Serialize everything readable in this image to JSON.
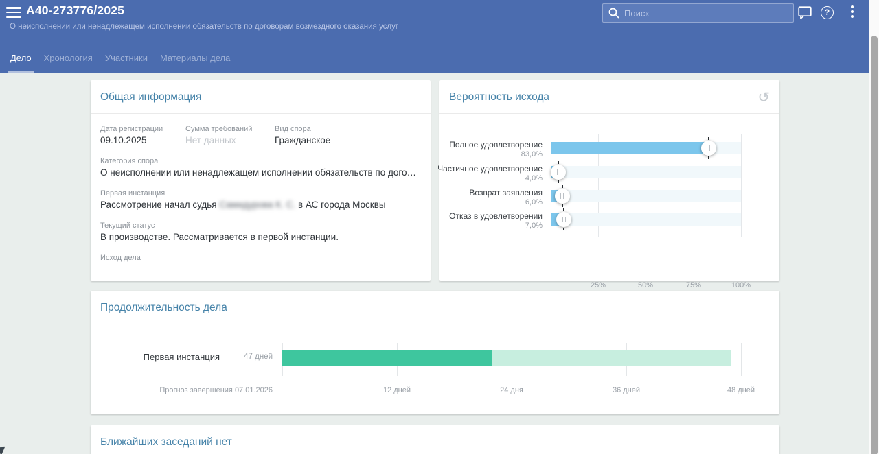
{
  "header": {
    "case_number": "А40-273776/2025",
    "case_subtitle": "О неисполнении или ненадлежащем исполнении обязательств по договорам возмездного оказания услуг",
    "search_placeholder": "Поиск"
  },
  "icons": {
    "refresh": "↺",
    "help": "?"
  },
  "tabs": [
    {
      "label": "Дело",
      "active": true
    },
    {
      "label": "Хронология",
      "active": false
    },
    {
      "label": "Участники",
      "active": false
    },
    {
      "label": "Материалы дела",
      "active": false
    }
  ],
  "general_info": {
    "title": "Общая информация",
    "registration_date_label": "Дата регистрации",
    "registration_date": "09.10.2025",
    "claim_amount_label": "Сумма требований",
    "claim_amount": "Нет данных",
    "dispute_type_label": "Вид спора",
    "dispute_type": "Гражданское",
    "dispute_category_label": "Категория спора",
    "dispute_category": "О неисполнении или ненадлежащем исполнении обязательств по договорам возмездного оказания услуг",
    "first_instance_label": "Первая инстанция",
    "first_instance_prefix": "Рассмотрение начал судья",
    "first_instance_judge_blurred": "Самидурова К. С.",
    "first_instance_suffix": "в АС города Москвы",
    "current_status_label": "Текущий статус",
    "current_status": "В производстве. Рассматривается в первой инстанции.",
    "outcome_label": "Исход дела",
    "outcome": "—"
  },
  "sessions": {
    "title": "Ближайших заседаний нет"
  },
  "chart_data": [
    {
      "type": "bar",
      "orientation": "horizontal",
      "title": "Вероятность исхода",
      "categories": [
        "Полное удовлетворение",
        "Частичное удовлетворение",
        "Возврат заявления",
        "Отказ в удовлетворении"
      ],
      "values": [
        83.0,
        4.0,
        6.0,
        7.0
      ],
      "value_labels": [
        "83,0%",
        "4,0%",
        "6,0%",
        "7,0%"
      ],
      "x_ticks": [
        "25%",
        "50%",
        "75%",
        "100%"
      ],
      "x_tick_values": [
        25,
        50,
        75,
        100
      ],
      "xlim": [
        0,
        100
      ],
      "grid": true,
      "legend": false,
      "bar_color": "#7cc6ec",
      "track_color": "#f1f8fb"
    },
    {
      "type": "bar",
      "orientation": "horizontal",
      "title": "Продолжительность дела",
      "categories": [
        "Первая инстанция"
      ],
      "series": [
        {
          "name": "elapsed-days",
          "values": [
            22
          ]
        },
        {
          "name": "forecast-total-days",
          "values": [
            47
          ]
        }
      ],
      "row_value_label": "47 дней",
      "x_ticks": [
        "12 дней",
        "24 дня",
        "36 дней",
        "48 дней"
      ],
      "x_tick_values": [
        12,
        24,
        36,
        48
      ],
      "xlim": [
        0,
        48
      ],
      "footnote": "Прогноз завершения 07.01.2026",
      "grid": true,
      "legend": false,
      "elapsed_color": "#3ec69e",
      "forecast_color": "#c7eedf"
    }
  ],
  "colors": {
    "header_bg": "#4b6caf",
    "card_title": "#4683a9",
    "page_bg": "#e9eeec",
    "outcome_bar": "#7cc6ec",
    "duration_elapsed": "#3ec69e",
    "duration_forecast": "#c7eedf"
  }
}
